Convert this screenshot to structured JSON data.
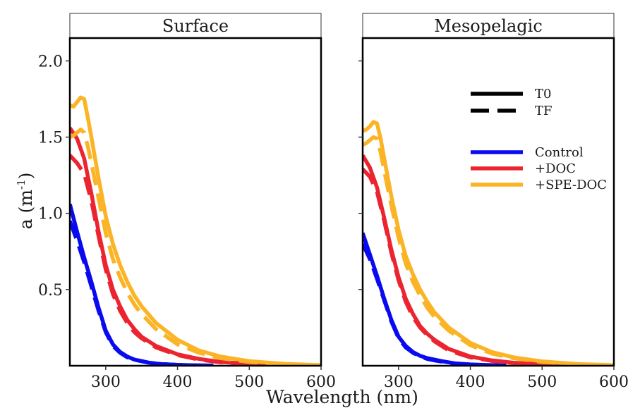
{
  "chart_data": {
    "type": "line",
    "xlabel": "Wavelength (nm)",
    "ylabel_main": "a (m",
    "ylabel_sup": "-1",
    "ylabel_close": ")",
    "xlim": [
      250,
      600
    ],
    "ylim": [
      0,
      2.15
    ],
    "x_ticks": [
      300,
      400,
      500,
      600
    ],
    "y_ticks": [
      0.5,
      1.0,
      1.5,
      2.0
    ],
    "y_tick_labels": [
      "0.5",
      "1.0",
      "1.5",
      "2.0"
    ],
    "legend": {
      "placement": "top-right of Mesopelagic panel",
      "line_types": [
        {
          "label": "T0",
          "dash": "solid"
        },
        {
          "label": "TF",
          "dash": "dashed"
        }
      ],
      "treatments": [
        {
          "label": "Control",
          "color": "#0a0af0"
        },
        {
          "label": "+DOC",
          "color": "#ec2430"
        },
        {
          "label": "+SPE-DOC",
          "color": "#fbb425"
        }
      ]
    },
    "panels": [
      {
        "title": "Surface",
        "series": [
          {
            "treatment": "Control",
            "time": "T0",
            "color": "#0a0af0",
            "dash": "solid",
            "x": [
              250,
              260,
              270,
              280,
              290,
              300,
              310,
              320,
              330,
              340,
              350,
              360,
              370,
              380,
              400,
              420,
              450
            ],
            "y": [
              1.06,
              0.88,
              0.71,
              0.55,
              0.38,
              0.23,
              0.14,
              0.09,
              0.06,
              0.04,
              0.03,
              0.02,
              0.015,
              0.01,
              0.006,
              0.003,
              0.001
            ]
          },
          {
            "treatment": "Control",
            "time": "TF",
            "color": "#0a0af0",
            "dash": "dashed",
            "x": [
              250,
              260,
              270,
              280,
              290,
              300,
              310,
              320,
              330,
              340,
              350,
              360,
              370,
              380,
              400,
              420,
              450
            ],
            "y": [
              0.95,
              0.82,
              0.68,
              0.52,
              0.36,
              0.22,
              0.13,
              0.085,
              0.055,
              0.04,
              0.03,
              0.02,
              0.015,
              0.01,
              0.006,
              0.003,
              0.001
            ]
          },
          {
            "treatment": "+DOC",
            "time": "T0",
            "color": "#ec2430",
            "dash": "solid",
            "x": [
              250,
              260,
              270,
              280,
              290,
              300,
              310,
              320,
              330,
              340,
              350,
              370,
              400,
              430,
              460,
              500,
              550
            ],
            "y": [
              1.56,
              1.49,
              1.36,
              1.13,
              0.88,
              0.66,
              0.5,
              0.39,
              0.3,
              0.24,
              0.19,
              0.13,
              0.075,
              0.045,
              0.025,
              0.012,
              0.004
            ]
          },
          {
            "treatment": "+DOC",
            "time": "TF",
            "color": "#ec2430",
            "dash": "dashed",
            "x": [
              250,
              260,
              270,
              280,
              290,
              300,
              310,
              320,
              330,
              340,
              350,
              370,
              400,
              430,
              460,
              500,
              550
            ],
            "y": [
              1.38,
              1.33,
              1.26,
              1.08,
              0.85,
              0.63,
              0.47,
              0.36,
              0.28,
              0.22,
              0.18,
              0.12,
              0.07,
              0.04,
              0.022,
              0.01,
              0.003
            ]
          },
          {
            "treatment": "+SPE-DOC",
            "time": "T0",
            "color": "#fbb425",
            "dash": "solid",
            "x": [
              250,
              255,
              260,
              265,
              270,
              275,
              280,
              290,
              300,
              310,
              320,
              330,
              340,
              350,
              370,
              400,
              430,
              460,
              500,
              550,
              600
            ],
            "y": [
              1.71,
              1.7,
              1.73,
              1.76,
              1.75,
              1.63,
              1.5,
              1.23,
              0.98,
              0.8,
              0.66,
              0.55,
              0.46,
              0.39,
              0.28,
              0.17,
              0.1,
              0.06,
              0.03,
              0.012,
              0.004
            ]
          },
          {
            "treatment": "+SPE-DOC",
            "time": "TF",
            "color": "#fbb425",
            "dash": "dashed",
            "x": [
              250,
              255,
              260,
              265,
              270,
              275,
              280,
              290,
              300,
              310,
              320,
              330,
              340,
              350,
              370,
              400,
              430,
              460,
              500,
              550,
              600
            ],
            "y": [
              1.5,
              1.51,
              1.53,
              1.55,
              1.53,
              1.44,
              1.33,
              1.1,
              0.87,
              0.7,
              0.58,
              0.48,
              0.4,
              0.34,
              0.24,
              0.14,
              0.085,
              0.05,
              0.025,
              0.01,
              0.003
            ]
          }
        ]
      },
      {
        "title": "Mesopelagic",
        "series": [
          {
            "treatment": "Control",
            "time": "T0",
            "color": "#0a0af0",
            "dash": "solid",
            "x": [
              250,
              260,
              270,
              280,
              290,
              300,
              310,
              320,
              330,
              340,
              350,
              360,
              370,
              380,
              400,
              420,
              450
            ],
            "y": [
              0.87,
              0.73,
              0.59,
              0.44,
              0.3,
              0.19,
              0.13,
              0.09,
              0.065,
              0.05,
              0.04,
              0.03,
              0.022,
              0.015,
              0.009,
              0.005,
              0.002
            ]
          },
          {
            "treatment": "Control",
            "time": "TF",
            "color": "#0a0af0",
            "dash": "dashed",
            "x": [
              250,
              260,
              270,
              280,
              290,
              300,
              310,
              320,
              330,
              340,
              350,
              360,
              370,
              380,
              400,
              420,
              450
            ],
            "y": [
              0.8,
              0.7,
              0.57,
              0.43,
              0.29,
              0.18,
              0.12,
              0.085,
              0.06,
              0.045,
              0.035,
              0.027,
              0.02,
              0.014,
              0.008,
              0.004,
              0.002
            ]
          },
          {
            "treatment": "+DOC",
            "time": "T0",
            "color": "#ec2430",
            "dash": "solid",
            "x": [
              250,
              260,
              270,
              280,
              290,
              300,
              310,
              320,
              330,
              340,
              350,
              370,
              400,
              430,
              460,
              500,
              550
            ],
            "y": [
              1.38,
              1.3,
              1.17,
              0.97,
              0.76,
              0.58,
              0.44,
              0.34,
              0.26,
              0.21,
              0.17,
              0.11,
              0.06,
              0.035,
              0.02,
              0.01,
              0.003
            ]
          },
          {
            "treatment": "+DOC",
            "time": "TF",
            "color": "#ec2430",
            "dash": "dashed",
            "x": [
              250,
              260,
              270,
              280,
              290,
              300,
              310,
              320,
              330,
              340,
              350,
              370,
              400,
              430,
              460,
              500,
              550
            ],
            "y": [
              1.29,
              1.24,
              1.14,
              0.95,
              0.74,
              0.56,
              0.42,
              0.32,
              0.25,
              0.2,
              0.16,
              0.1,
              0.055,
              0.032,
              0.018,
              0.009,
              0.003
            ]
          },
          {
            "treatment": "+SPE-DOC",
            "time": "T0",
            "color": "#fbb425",
            "dash": "solid",
            "x": [
              250,
              255,
              260,
              265,
              270,
              275,
              280,
              290,
              300,
              310,
              320,
              330,
              340,
              350,
              370,
              400,
              430,
              460,
              500,
              550,
              600
            ],
            "y": [
              1.54,
              1.55,
              1.57,
              1.6,
              1.59,
              1.49,
              1.36,
              1.11,
              0.89,
              0.72,
              0.6,
              0.5,
              0.42,
              0.35,
              0.25,
              0.15,
              0.09,
              0.055,
              0.028,
              0.011,
              0.004
            ]
          },
          {
            "treatment": "+SPE-DOC",
            "time": "TF",
            "color": "#fbb425",
            "dash": "dashed",
            "x": [
              250,
              255,
              260,
              265,
              270,
              275,
              280,
              290,
              300,
              310,
              320,
              330,
              340,
              350,
              370,
              400,
              430,
              460,
              500,
              550,
              600
            ],
            "y": [
              1.45,
              1.46,
              1.48,
              1.5,
              1.49,
              1.4,
              1.28,
              1.05,
              0.84,
              0.67,
              0.55,
              0.46,
              0.38,
              0.32,
              0.23,
              0.135,
              0.08,
              0.05,
              0.025,
              0.01,
              0.003
            ]
          }
        ]
      }
    ]
  }
}
